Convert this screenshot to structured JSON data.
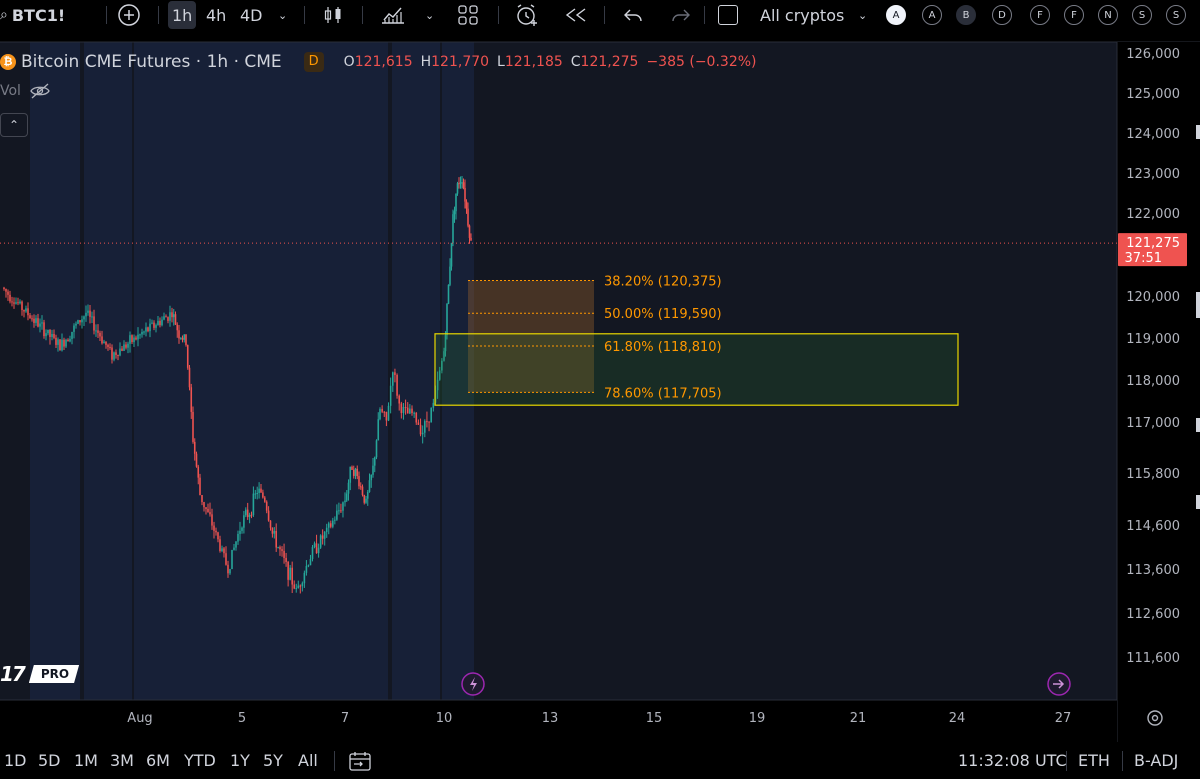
{
  "toolbar": {
    "symbol": "BTC1!",
    "intervals": [
      "1h",
      "4h",
      "4D"
    ],
    "active_interval": "1h",
    "watchlist_label": "All cryptos",
    "session_buttons": [
      "A",
      "A",
      "B",
      "D",
      "F",
      "F",
      "N",
      "S",
      "S"
    ]
  },
  "legend": {
    "title": "Bitcoin CME Futures · 1h · CME",
    "badge": "D",
    "open_label": "O",
    "open": "121,615",
    "high_label": "H",
    "high": "121,770",
    "low_label": "L",
    "low": "121,185",
    "close_label": "C",
    "close": "121,275",
    "change": "−385 (−0.32%)",
    "vol_label": "Vol",
    "up_color": "#26a69a",
    "down_color": "#ef5350"
  },
  "price_scale": {
    "labels": [
      "126,000",
      "125,000",
      "124,000",
      "123,000",
      "122,000",
      "120,000",
      "119,000",
      "118,000",
      "117,000",
      "115,800",
      "114,600",
      "113,600",
      "112,600",
      "111,600"
    ],
    "last_price": "121,275",
    "countdown": "37:51"
  },
  "time_scale": {
    "labels": [
      "Aug",
      "5",
      "7",
      "10",
      "13",
      "15",
      "19",
      "21",
      "24",
      "27"
    ]
  },
  "fib_levels": [
    {
      "label": "38.20% (120,375)",
      "price": 120375
    },
    {
      "label": "50.00% (119,590)",
      "price": 119590
    },
    {
      "label": "61.80% (118,810)",
      "price": 118810
    },
    {
      "label": "78.60% (117,705)",
      "price": 117705
    }
  ],
  "bottom": {
    "ranges": [
      "1D",
      "5D",
      "1M",
      "3M",
      "6M",
      "YTD",
      "1Y",
      "5Y",
      "All"
    ],
    "clock": "11:32:08 UTC",
    "session": "ETH",
    "adjust": "B-ADJ"
  },
  "logo_text": "PRO",
  "chart_data": {
    "type": "candlestick",
    "symbol": "BTC1!",
    "interval": "1h",
    "current_ohlc": {
      "open": 121615,
      "high": 121770,
      "low": 121185,
      "close": 121275
    },
    "change": -385,
    "change_pct": -0.32,
    "last_price": 121275,
    "x_labels": [
      "Aug",
      "5",
      "7",
      "10",
      "13",
      "15",
      "19",
      "21",
      "24",
      "27"
    ],
    "path": [
      [
        "Jul 31",
        120200
      ],
      [
        "Aug 1",
        118800
      ],
      [
        "Aug 1",
        119600
      ],
      [
        "Aug 2",
        118600
      ],
      [
        "Aug 2",
        119100
      ],
      [
        "Aug 3",
        119600
      ],
      [
        "Aug 3",
        119100
      ],
      [
        "Aug 3",
        118900
      ],
      [
        "Aug 3",
        116600
      ],
      [
        "Aug 4",
        115300
      ],
      [
        "Aug 4",
        114500
      ],
      [
        "Aug 4",
        113600
      ],
      [
        "Aug 5",
        114700
      ],
      [
        "Aug 5",
        114900
      ],
      [
        "Aug 5",
        115400
      ],
      [
        "Aug 5",
        115200
      ],
      [
        "Aug 5",
        114400
      ],
      [
        "Aug 6",
        114000
      ],
      [
        "Aug 6",
        113100
      ],
      [
        "Aug 6",
        114000
      ],
      [
        "Aug 6",
        114500
      ],
      [
        "Aug 7",
        115200
      ],
      [
        "Aug 7",
        116000
      ],
      [
        "Aug 7",
        115600
      ],
      [
        "Aug 7",
        115100
      ],
      [
        "Aug 7",
        115900
      ],
      [
        "Aug 8",
        117300
      ],
      [
        "Aug 8",
        117000
      ],
      [
        "Aug 8",
        118300
      ],
      [
        "Aug 8",
        117400
      ],
      [
        "Aug 8",
        117200
      ],
      [
        "Aug 9",
        117200
      ],
      [
        "Aug 9",
        116800
      ],
      [
        "Aug 9",
        117400
      ],
      [
        "Aug 10",
        118700
      ],
      [
        "Aug 10",
        119700
      ],
      [
        "Aug 10",
        120800
      ],
      [
        "Aug 10",
        121900
      ],
      [
        "Aug 10",
        122500
      ],
      [
        "Aug 10",
        122800
      ],
      [
        "Aug 11",
        122900
      ],
      [
        "Aug 11",
        122400
      ],
      [
        "Aug 11",
        121800
      ],
      [
        "Aug 11",
        121275
      ]
    ],
    "fibonacci": [
      {
        "ratio": 0.382,
        "price": 120375
      },
      {
        "ratio": 0.5,
        "price": 119590
      },
      {
        "ratio": 0.618,
        "price": 118810
      },
      {
        "ratio": 0.786,
        "price": 117705
      }
    ],
    "ylim": [
      110800,
      126400
    ]
  }
}
